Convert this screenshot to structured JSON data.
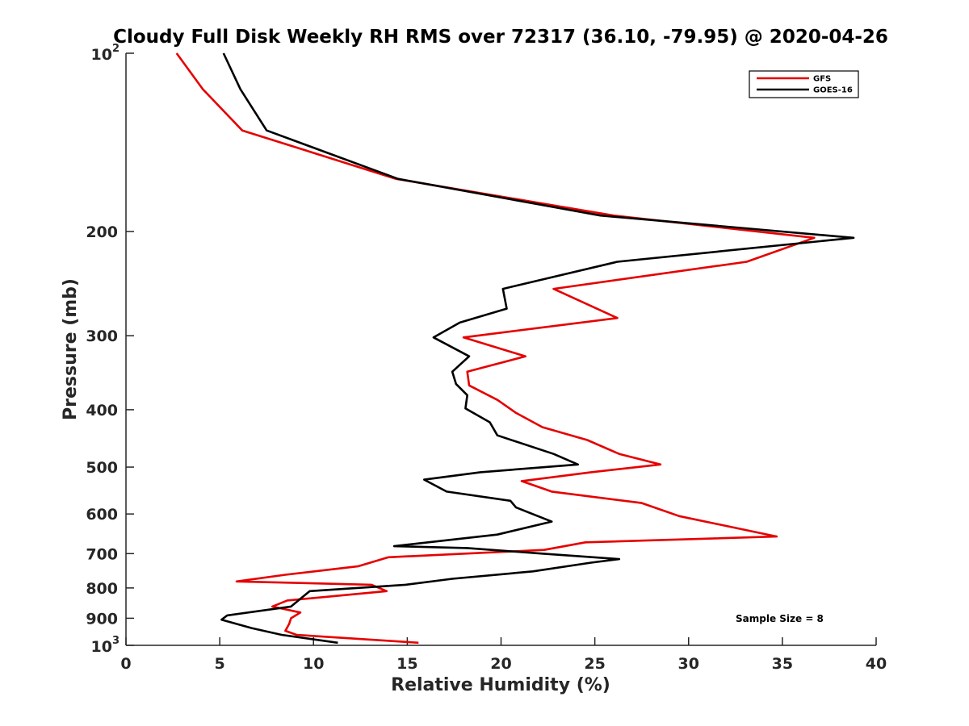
{
  "chart_data": {
    "type": "line",
    "title": "Cloudy Full Disk Weekly RH RMS over 72317 (36.10, -79.95) @ 2020-04-26",
    "xlabel": "Relative Humidity (%)",
    "ylabel": "Pressure (mb)",
    "xlim": [
      0,
      40
    ],
    "ylim": [
      100,
      1000
    ],
    "y_scale": "log",
    "y_reversed": true,
    "grid": false,
    "legend_position": "top-right",
    "x_ticks": [
      0,
      5,
      10,
      15,
      20,
      25,
      30,
      35,
      40
    ],
    "x_tick_labels": [
      "0",
      "5",
      "10",
      "15",
      "20",
      "25",
      "30",
      "35",
      "40"
    ],
    "y_ticks": [
      {
        "value": 100,
        "base": "10",
        "exp": "2"
      },
      {
        "value": 200,
        "label": "200"
      },
      {
        "value": 300,
        "label": "300"
      },
      {
        "value": 400,
        "label": "400"
      },
      {
        "value": 500,
        "label": "500"
      },
      {
        "value": 600,
        "label": "600"
      },
      {
        "value": 700,
        "label": "700"
      },
      {
        "value": 800,
        "label": "800"
      },
      {
        "value": 900,
        "label": "900"
      },
      {
        "value": 1000,
        "base": "10",
        "exp": "3"
      }
    ],
    "series": [
      {
        "name": "GFS",
        "color": "#e60000",
        "points": [
          [
            2.7,
            100
          ],
          [
            4.1,
            115
          ],
          [
            6.2,
            135
          ],
          [
            14.4,
            163
          ],
          [
            26.0,
            188
          ],
          [
            36.7,
            205
          ],
          [
            33.1,
            225
          ],
          [
            22.8,
            250
          ],
          [
            26.2,
            280
          ],
          [
            18.0,
            302
          ],
          [
            21.3,
            325
          ],
          [
            18.2,
            345
          ],
          [
            18.3,
            364
          ],
          [
            19.8,
            385
          ],
          [
            20.8,
            405
          ],
          [
            22.2,
            428
          ],
          [
            24.6,
            450
          ],
          [
            26.3,
            475
          ],
          [
            28.5,
            495
          ],
          [
            24.8,
            510
          ],
          [
            21.1,
            528
          ],
          [
            22.7,
            550
          ],
          [
            27.5,
            575
          ],
          [
            29.5,
            605
          ],
          [
            34.7,
            655
          ],
          [
            24.5,
            670
          ],
          [
            22.3,
            690
          ],
          [
            14.0,
            710
          ],
          [
            12.4,
            735
          ],
          [
            8.5,
            760
          ],
          [
            5.9,
            780
          ],
          [
            13.1,
            790
          ],
          [
            13.9,
            810
          ],
          [
            8.6,
            840
          ],
          [
            7.8,
            860
          ],
          [
            9.3,
            880
          ],
          [
            8.8,
            900
          ],
          [
            8.7,
            920
          ],
          [
            8.5,
            945
          ],
          [
            9.1,
            960
          ],
          [
            15.6,
            990
          ]
        ]
      },
      {
        "name": "GOES-16",
        "color": "#000000",
        "points": [
          [
            5.2,
            100
          ],
          [
            6.1,
            115
          ],
          [
            7.5,
            135
          ],
          [
            14.5,
            163
          ],
          [
            25.3,
            188
          ],
          [
            38.8,
            205
          ],
          [
            26.2,
            225
          ],
          [
            20.1,
            250
          ],
          [
            20.3,
            270
          ],
          [
            17.8,
            285
          ],
          [
            16.4,
            302
          ],
          [
            18.3,
            325
          ],
          [
            17.4,
            345
          ],
          [
            17.6,
            362
          ],
          [
            18.2,
            378
          ],
          [
            18.1,
            398
          ],
          [
            19.4,
            420
          ],
          [
            19.8,
            442
          ],
          [
            22.8,
            475
          ],
          [
            24.1,
            495
          ],
          [
            18.9,
            510
          ],
          [
            15.9,
            525
          ],
          [
            17.1,
            550
          ],
          [
            20.5,
            570
          ],
          [
            20.8,
            585
          ],
          [
            22.7,
            618
          ],
          [
            19.8,
            650
          ],
          [
            14.3,
            680
          ],
          [
            18.2,
            685
          ],
          [
            22.2,
            700
          ],
          [
            26.3,
            715
          ],
          [
            24.8,
            725
          ],
          [
            21.7,
            750
          ],
          [
            17.4,
            772
          ],
          [
            14.9,
            790
          ],
          [
            9.8,
            810
          ],
          [
            8.8,
            860
          ],
          [
            5.4,
            890
          ],
          [
            5.1,
            905
          ],
          [
            6.7,
            935
          ],
          [
            8.3,
            960
          ],
          [
            11.3,
            990
          ]
        ]
      }
    ],
    "annotations": [
      "Sample Size = 8"
    ]
  }
}
